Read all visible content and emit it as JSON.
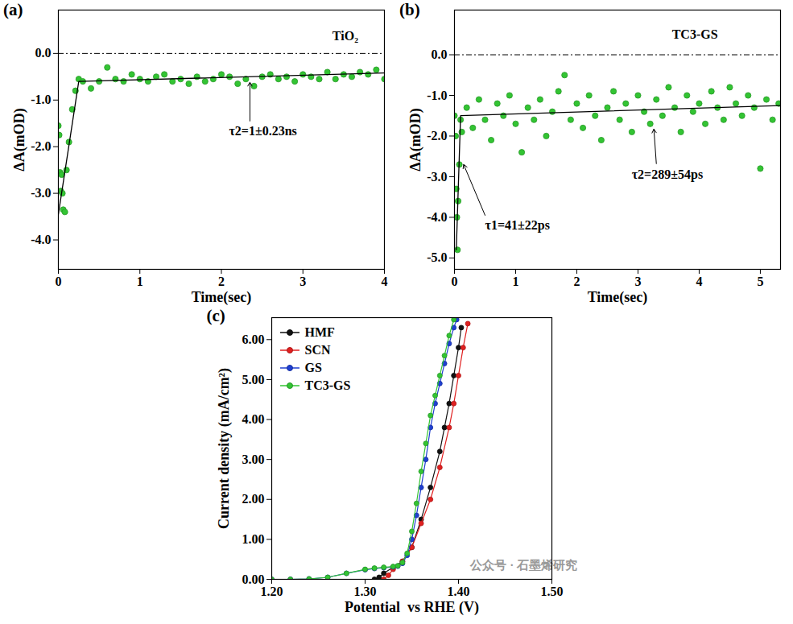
{
  "chart_data": [
    {
      "type": "scatter",
      "title": "(a)",
      "x_label": "Time(sec)",
      "y_label": "ΔA(mOD)",
      "xlim": [
        0,
        4
      ],
      "xticks": [
        0,
        1,
        2,
        3,
        4
      ],
      "ylim": [
        -4.63,
        0.93
      ],
      "yticks": [
        {
          "value": 0,
          "label": "0.0"
        },
        {
          "value": -1,
          "label": "-1.0"
        },
        {
          "value": -2,
          "label": "-2.0"
        },
        {
          "value": -3,
          "label": "-3.0"
        },
        {
          "value": -4,
          "label": "-4.0"
        }
      ],
      "series": [
        {
          "type": "scatter",
          "color": "#33c433",
          "marker": "circle",
          "x": [
            0,
            0.01,
            0.02,
            0.03,
            0.04,
            0.05,
            0.06,
            0.08,
            0.1,
            0.13,
            0.17,
            0.21,
            0.25,
            0.3,
            0.4,
            0.5,
            0.6,
            0.7,
            0.8,
            0.9,
            1.0,
            1.1,
            1.2,
            1.3,
            1.4,
            1.5,
            1.6,
            1.7,
            1.8,
            1.9,
            2.0,
            2.1,
            2.2,
            2.3,
            2.4,
            2.5,
            2.6,
            2.7,
            2.8,
            2.9,
            3.0,
            3.1,
            3.2,
            3.3,
            3.4,
            3.5,
            3.6,
            3.7,
            3.8,
            3.9,
            4.0
          ],
          "values": [
            -1.55,
            -1.75,
            -2.55,
            -2.95,
            -2.6,
            -3.0,
            -3.35,
            -3.4,
            -2.5,
            -1.9,
            -1.2,
            -0.8,
            -0.55,
            -0.6,
            -0.75,
            -0.6,
            -0.3,
            -0.55,
            -0.6,
            -0.45,
            -0.55,
            -0.6,
            -0.5,
            -0.45,
            -0.6,
            -0.55,
            -0.65,
            -0.5,
            -0.6,
            -0.55,
            -0.45,
            -0.5,
            -0.65,
            -0.55,
            -0.7,
            -0.5,
            -0.45,
            -0.55,
            -0.5,
            -0.6,
            -0.45,
            -0.5,
            -0.55,
            -0.4,
            -0.55,
            -0.45,
            -0.5,
            -0.4,
            -0.45,
            -0.35,
            -0.55
          ]
        },
        {
          "type": "line",
          "color": "#000000",
          "x": [
            0,
            0.25,
            4
          ],
          "values": [
            -3.45,
            -0.6,
            -0.42
          ]
        }
      ],
      "annotations": [
        {
          "type": "hline",
          "y": 0,
          "line_style": "dashdot"
        },
        {
          "text": "TiO₂",
          "x": 3.52,
          "y": 0.37
        },
        {
          "text": "τ2=1±0.23ns",
          "x": 2.51,
          "y": -1.67,
          "arrow": [
            2.35,
            -1.45,
            2.35,
            -0.62
          ]
        }
      ]
    },
    {
      "type": "scatter",
      "title": "(b)",
      "x_label": "Time(sec)",
      "y_label": "ΔA(mOD)",
      "xlim": [
        0,
        5.33
      ],
      "xticks": [
        0,
        1,
        2,
        3,
        4,
        5
      ],
      "ylim": [
        -5.28,
        1.1
      ],
      "yticks": [
        {
          "value": 0,
          "label": "0.0"
        },
        {
          "value": -1,
          "label": "-1.0"
        },
        {
          "value": -2,
          "label": "-2.0"
        },
        {
          "value": -3,
          "label": "-3.0"
        },
        {
          "value": -4,
          "label": "-4.0"
        },
        {
          "value": -5,
          "label": "-5.0"
        }
      ],
      "series": [
        {
          "type": "scatter",
          "color": "#33c433",
          "marker": "circle",
          "x": [
            0,
            0.02,
            0.03,
            0.04,
            0.05,
            0.06,
            0.08,
            0.1,
            0.12,
            0.2,
            0.3,
            0.4,
            0.5,
            0.6,
            0.7,
            0.8,
            0.9,
            1.0,
            1.1,
            1.2,
            1.3,
            1.4,
            1.5,
            1.6,
            1.7,
            1.8,
            1.9,
            2.0,
            2.1,
            2.2,
            2.3,
            2.4,
            2.5,
            2.6,
            2.7,
            2.8,
            2.9,
            3.0,
            3.1,
            3.2,
            3.3,
            3.4,
            3.5,
            3.6,
            3.7,
            3.8,
            3.9,
            4.0,
            4.1,
            4.2,
            4.3,
            4.4,
            4.5,
            4.6,
            4.7,
            4.8,
            4.9,
            5.0,
            5.1,
            5.2,
            5.3
          ],
          "values": [
            -1.5,
            -2.0,
            -3.3,
            -4.0,
            -4.8,
            -3.6,
            -2.7,
            -1.6,
            -1.9,
            -1.3,
            -1.8,
            -1.1,
            -1.6,
            -2.1,
            -1.2,
            -1.5,
            -1.0,
            -1.7,
            -2.4,
            -1.3,
            -1.6,
            -1.1,
            -2.0,
            -1.4,
            -0.9,
            -0.5,
            -1.6,
            -1.2,
            -1.8,
            -1.0,
            -1.5,
            -2.1,
            -1.3,
            -0.9,
            -1.6,
            -1.2,
            -1.9,
            -1.0,
            -1.4,
            -1.7,
            -1.1,
            -1.5,
            -0.8,
            -1.3,
            -1.9,
            -1.0,
            -1.4,
            -1.2,
            -1.7,
            -0.9,
            -1.3,
            -1.6,
            -0.8,
            -1.2,
            -1.5,
            -1.0,
            -1.3,
            -2.8,
            -1.1,
            -1.6,
            -1.2
          ]
        },
        {
          "type": "line",
          "color": "#000000",
          "x": [
            0.03,
            0.1,
            5.33
          ],
          "values": [
            -4.8,
            -1.5,
            -1.25
          ]
        }
      ],
      "annotations": [
        {
          "type": "hline",
          "y": 0,
          "line_style": "dashdot"
        },
        {
          "text": "TC3-GS",
          "x": 3.93,
          "y": 0.5
        },
        {
          "text": "τ1=41±22ps",
          "x": 1.03,
          "y": -4.2,
          "arrow": [
            0.5,
            -3.95,
            0.15,
            -2.7
          ]
        },
        {
          "text": "τ2=289±54ps",
          "x": 3.48,
          "y": -2.94,
          "arrow": [
            3.3,
            -2.68,
            3.26,
            -1.83
          ]
        }
      ]
    },
    {
      "type": "line",
      "title": "(c)",
      "x_label": "Potential  vs RHE (V)",
      "y_label": "Current density (mA/cm²)",
      "xlim": [
        1.2,
        1.5
      ],
      "xticks": [
        {
          "value": 1.2,
          "label": "1.20"
        },
        {
          "value": 1.3,
          "label": "1.30"
        },
        {
          "value": 1.4,
          "label": "1.40"
        },
        {
          "value": 1.5,
          "label": "1.50"
        }
      ],
      "ylim": [
        0,
        6.55
      ],
      "yticks": [
        {
          "value": 0,
          "label": "0.00"
        },
        {
          "value": 1,
          "label": "1.00"
        },
        {
          "value": 2,
          "label": "2.00"
        },
        {
          "value": 3,
          "label": "3.00"
        },
        {
          "value": 4,
          "label": "4.00"
        },
        {
          "value": 5,
          "label": "5.00"
        },
        {
          "value": 6,
          "label": "6.00"
        }
      ],
      "legend": "top-left",
      "series": [
        {
          "name": "HMF",
          "color": "#111111",
          "marker": "circle",
          "type": "line",
          "x": [
            1.31,
            1.315,
            1.32,
            1.33,
            1.34,
            1.35,
            1.36,
            1.37,
            1.38,
            1.385,
            1.39,
            1.395,
            1.4,
            1.403
          ],
          "values": [
            0,
            0.05,
            0.15,
            0.3,
            0.45,
            0.8,
            1.5,
            2.3,
            3.2,
            3.8,
            4.4,
            5.1,
            5.8,
            6.3
          ]
        },
        {
          "name": "SCN",
          "color": "#e02020",
          "marker": "circle",
          "type": "line",
          "x": [
            1.32,
            1.325,
            1.33,
            1.34,
            1.35,
            1.36,
            1.37,
            1.38,
            1.39,
            1.395,
            1.4,
            1.405,
            1.41
          ],
          "values": [
            0,
            0.1,
            0.25,
            0.45,
            0.8,
            1.4,
            2.0,
            2.8,
            3.8,
            4.4,
            5.1,
            5.8,
            6.4
          ]
        },
        {
          "name": "GS",
          "color": "#1f3fd0",
          "marker": "circle",
          "type": "line",
          "x": [
            1.2,
            1.22,
            1.24,
            1.26,
            1.28,
            1.3,
            1.31,
            1.32,
            1.33,
            1.335,
            1.34,
            1.345,
            1.35,
            1.355,
            1.36,
            1.365,
            1.37,
            1.375,
            1.38,
            1.385,
            1.39,
            1.395,
            1.398
          ],
          "values": [
            0,
            0,
            0.01,
            0.05,
            0.15,
            0.24,
            0.27,
            0.29,
            0.31,
            0.33,
            0.4,
            0.6,
            1.0,
            1.6,
            2.3,
            3.0,
            3.8,
            4.4,
            4.9,
            5.4,
            5.9,
            6.3,
            6.5
          ]
        },
        {
          "name": "TC3-GS",
          "color": "#33c433",
          "marker": "circle",
          "type": "line",
          "x": [
            1.2,
            1.22,
            1.24,
            1.26,
            1.28,
            1.3,
            1.31,
            1.32,
            1.33,
            1.335,
            1.34,
            1.345,
            1.35,
            1.355,
            1.36,
            1.365,
            1.37,
            1.375,
            1.38,
            1.385,
            1.39,
            1.395
          ],
          "values": [
            0,
            0,
            0.01,
            0.05,
            0.15,
            0.25,
            0.28,
            0.3,
            0.32,
            0.34,
            0.42,
            0.65,
            1.2,
            1.9,
            2.7,
            3.4,
            4.1,
            4.6,
            5.1,
            5.6,
            6.1,
            6.5
          ]
        }
      ],
      "annotations": [
        {
          "text": "公众号 · 石墨烯研究",
          "x": 1.47,
          "y": 0.35,
          "color": "#999999"
        }
      ]
    }
  ]
}
